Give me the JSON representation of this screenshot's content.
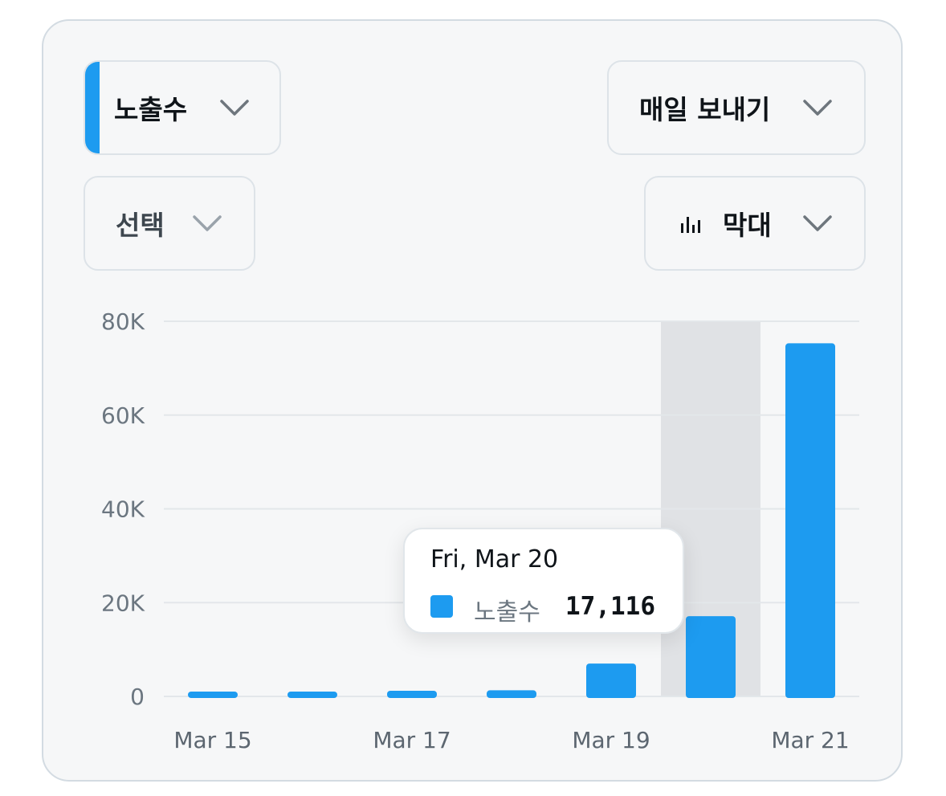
{
  "controls": {
    "metric_label": "노출수",
    "export_label": "매일 보내기",
    "select_label": "선택",
    "chart_type_label": "막대"
  },
  "colors": {
    "accent": "#1d9bf0",
    "highlight_band": "#e0e2e5",
    "grid": "#e3e7ea"
  },
  "icons": {
    "metric_chevron": "chevron-down-icon",
    "export_chevron": "chevron-down-icon",
    "select_chevron": "chevron-down-icon",
    "chart_type_icon": "bar-chart-icon",
    "chart_type_chevron": "chevron-down-icon"
  },
  "tooltip": {
    "date": "Fri, Mar 20",
    "metric": "노출수",
    "value": "17,116"
  },
  "chart_data": {
    "type": "bar",
    "categories": [
      "Mar 15",
      "Mar 16",
      "Mar 17",
      "Mar 18",
      "Mar 19",
      "Mar 20",
      "Mar 21"
    ],
    "x_tick_labels": [
      "Mar 15",
      "",
      "Mar 17",
      "",
      "Mar 19",
      "",
      "Mar 21"
    ],
    "series": [
      {
        "name": "노출수",
        "values": [
          700,
          500,
          1200,
          1300,
          7000,
          17116,
          75300
        ]
      }
    ],
    "y_ticks": [
      0,
      20000,
      40000,
      60000,
      80000
    ],
    "y_tick_labels": [
      "0",
      "20K",
      "40K",
      "60K",
      "80K"
    ],
    "ylim": [
      0,
      80000
    ],
    "highlighted_category": "Mar 20",
    "grid": true,
    "legend": "none"
  }
}
